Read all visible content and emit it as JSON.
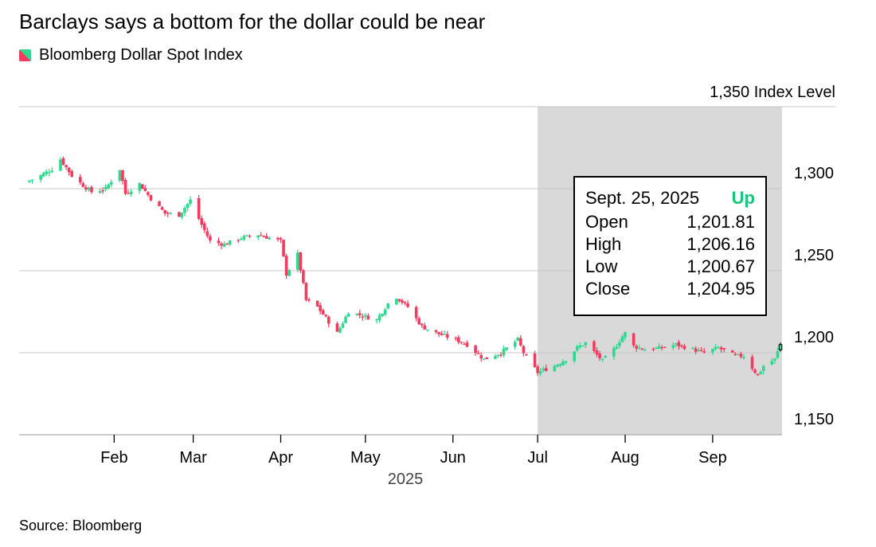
{
  "subtitle": "Barclays says a bottom for the dollar could be near",
  "source": "Source: Bloomberg",
  "colors": {
    "up": "#2fd88e",
    "down": "#f23b5e",
    "highlight": "#d9d9d9",
    "grid": "#c8c8c8"
  },
  "tooltip": {
    "date": "Sept. 25, 2025",
    "direction": "Up",
    "open_label": "Open",
    "open": "1,201.81",
    "high_label": "High",
    "high": "1,206.16",
    "low_label": "Low",
    "low": "1,200.67",
    "close_label": "Close",
    "close": "1,204.95"
  },
  "chart_data": {
    "type": "candlestick",
    "legend": [
      "Bloomberg Dollar Spot Index"
    ],
    "legend_position": "top-left",
    "y_unit_label": "Index Level",
    "y_ticks": [
      1150,
      1200,
      1250,
      1300,
      1350
    ],
    "y_tick_labels": [
      "1,150",
      "1,200",
      "1,250",
      "1,300",
      "1,350 Index Level"
    ],
    "ylim": [
      1150,
      1350
    ],
    "x_start": "2025-01-02",
    "x_end": "2025-09-25",
    "x_ticks": [
      "2025-02-01",
      "2025-03-01",
      "2025-04-01",
      "2025-05-01",
      "2025-06-01",
      "2025-07-01",
      "2025-08-01",
      "2025-09-01"
    ],
    "x_tick_labels": [
      "Feb",
      "Mar",
      "Apr",
      "May",
      "Jun",
      "Jul",
      "Aug",
      "Sep"
    ],
    "x_year_label": "2025",
    "grid": "horizontal",
    "highlight_range": [
      "2025-07-01",
      "2025-09-25"
    ],
    "anchors": [
      [
        "2025-01-02",
        1305
      ],
      [
        "2025-01-06",
        1308
      ],
      [
        "2025-01-10",
        1312
      ],
      [
        "2025-01-13",
        1318
      ],
      [
        "2025-01-17",
        1308
      ],
      [
        "2025-01-21",
        1302
      ],
      [
        "2025-01-24",
        1298
      ],
      [
        "2025-01-29",
        1300
      ],
      [
        "2025-02-03",
        1312
      ],
      [
        "2025-02-05",
        1297
      ],
      [
        "2025-02-10",
        1303
      ],
      [
        "2025-02-14",
        1294
      ],
      [
        "2025-02-19",
        1285
      ],
      [
        "2025-02-24",
        1284
      ],
      [
        "2025-02-28",
        1293
      ],
      [
        "2025-03-04",
        1278
      ],
      [
        "2025-03-07",
        1268
      ],
      [
        "2025-03-12",
        1266
      ],
      [
        "2025-03-18",
        1270
      ],
      [
        "2025-03-24",
        1272
      ],
      [
        "2025-03-28",
        1270
      ],
      [
        "2025-04-01",
        1268
      ],
      [
        "2025-04-03",
        1248
      ],
      [
        "2025-04-07",
        1260
      ],
      [
        "2025-04-10",
        1232
      ],
      [
        "2025-04-14",
        1228
      ],
      [
        "2025-04-21",
        1212
      ],
      [
        "2025-04-25",
        1225
      ],
      [
        "2025-05-01",
        1222
      ],
      [
        "2025-05-05",
        1220
      ],
      [
        "2025-05-09",
        1230
      ],
      [
        "2025-05-12",
        1234
      ],
      [
        "2025-05-16",
        1228
      ],
      [
        "2025-05-21",
        1216
      ],
      [
        "2025-05-26",
        1212
      ],
      [
        "2025-06-02",
        1208
      ],
      [
        "2025-06-06",
        1205
      ],
      [
        "2025-06-12",
        1196
      ],
      [
        "2025-06-18",
        1200
      ],
      [
        "2025-06-24",
        1208
      ],
      [
        "2025-06-26",
        1200
      ],
      [
        "2025-07-01",
        1188
      ],
      [
        "2025-07-07",
        1192
      ],
      [
        "2025-07-11",
        1196
      ],
      [
        "2025-07-15",
        1203
      ],
      [
        "2025-07-18",
        1206
      ],
      [
        "2025-07-24",
        1195
      ],
      [
        "2025-07-28",
        1202
      ],
      [
        "2025-07-31",
        1210
      ],
      [
        "2025-08-01",
        1212
      ],
      [
        "2025-08-04",
        1204
      ],
      [
        "2025-08-08",
        1202
      ],
      [
        "2025-08-14",
        1203
      ],
      [
        "2025-08-19",
        1205
      ],
      [
        "2025-08-25",
        1202
      ],
      [
        "2025-08-29",
        1200
      ],
      [
        "2025-09-03",
        1203
      ],
      [
        "2025-09-09",
        1198
      ],
      [
        "2025-09-12",
        1198
      ],
      [
        "2025-09-17",
        1186
      ],
      [
        "2025-09-19",
        1192
      ],
      [
        "2025-09-23",
        1196
      ],
      [
        "2025-09-25",
        1204.95
      ]
    ],
    "highlighted_candle": {
      "date": "2025-09-25",
      "open": 1201.81,
      "high": 1206.16,
      "low": 1200.67,
      "close": 1204.95
    }
  }
}
